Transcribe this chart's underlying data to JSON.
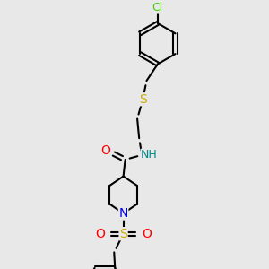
{
  "background_color": "#e8e8e8",
  "atom_colors": {
    "C": "#000000",
    "N": "#0000ee",
    "O": "#ff0000",
    "S_thioether": "#ccaa00",
    "S_sulfonyl": "#ccaa00",
    "Cl": "#44cc00",
    "NH": "#008888"
  },
  "lw": 1.5,
  "figsize": [
    3.0,
    3.0
  ],
  "dpi": 100,
  "xlim": [
    30,
    270
  ],
  "ylim": [
    5,
    295
  ]
}
